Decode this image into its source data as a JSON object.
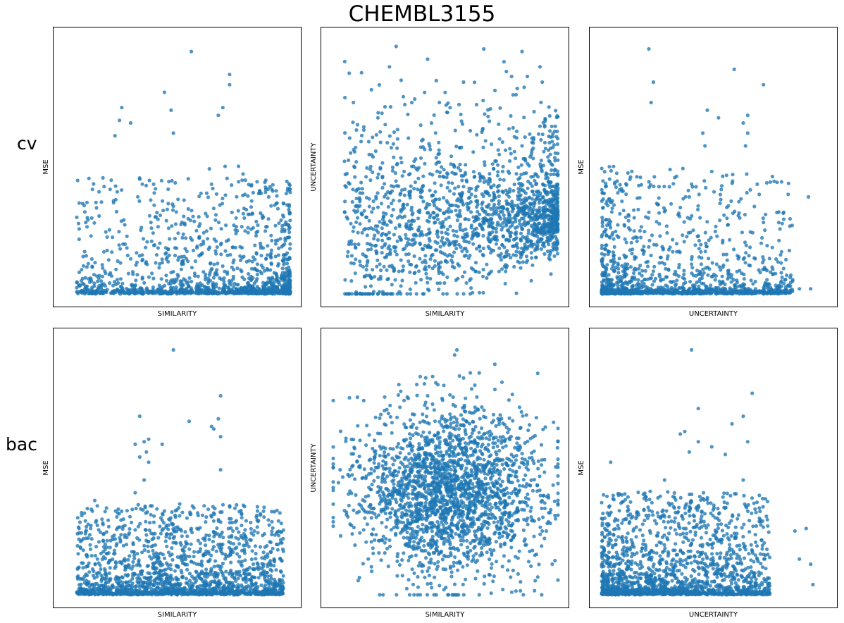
{
  "title": "CHEMBL3155",
  "row_labels": {
    "cv": "cv",
    "bac": "bac"
  },
  "colors": {
    "points": "#1f77b4"
  },
  "chart_data": [
    {
      "type": "scatter",
      "row": "cv",
      "xlabel": "SIMILARITY",
      "ylabel": "MSE",
      "ticks": "hidden",
      "xlim": [
        0,
        1
      ],
      "ylim": [
        0,
        1
      ],
      "seed": 11,
      "n_points": 1400,
      "points": [
        [
          0.56,
          0.95
        ],
        [
          0.73,
          0.86
        ],
        [
          0.73,
          0.82
        ],
        [
          0.44,
          0.79
        ],
        [
          0.47,
          0.72
        ],
        [
          0.7,
          0.73
        ],
        [
          0.25,
          0.73
        ],
        [
          0.24,
          0.68
        ],
        [
          0.29,
          0.67
        ],
        [
          0.48,
          0.63
        ],
        [
          0.22,
          0.62
        ],
        [
          0.68,
          0.7
        ],
        [
          0.64,
          0.49
        ],
        [
          0.71,
          0.5
        ],
        [
          0.46,
          0.44
        ],
        [
          0.33,
          0.45
        ],
        [
          0.65,
          0.43
        ],
        [
          0.91,
          0.42
        ],
        [
          0.16,
          0.36
        ],
        [
          0.77,
          0.5
        ],
        [
          0.79,
          0.47
        ],
        [
          0.09,
          0.28
        ],
        [
          0.38,
          0.28
        ],
        [
          0.23,
          0.4
        ],
        [
          0.1,
          0.29
        ]
      ]
    },
    {
      "type": "scatter",
      "row": "cv",
      "xlabel": "SIMILARITY",
      "ylabel": "UNCERTAINTY",
      "ticks": "hidden",
      "xlim": [
        0,
        1
      ],
      "ylim": [
        0,
        1
      ],
      "seed": 23,
      "n_points": 1700,
      "points": [
        [
          0.28,
          0.97
        ],
        [
          0.67,
          0.96
        ],
        [
          0.84,
          0.95
        ],
        [
          0.76,
          0.91
        ],
        [
          0.42,
          0.92
        ],
        [
          0.25,
          0.89
        ],
        [
          0.92,
          0.89
        ],
        [
          0.85,
          0.81
        ],
        [
          0.58,
          0.83
        ],
        [
          0.09,
          0.75
        ],
        [
          0.52,
          0.73
        ],
        [
          0.2,
          0.71
        ],
        [
          0.93,
          0.83
        ],
        [
          0.8,
          0.78
        ],
        [
          0.17,
          0.8
        ],
        [
          0.35,
          0.75
        ],
        [
          0.05,
          0.52
        ],
        [
          0.11,
          0.24
        ],
        [
          0.84,
          0.58
        ],
        [
          0.36,
          0.52
        ]
      ]
    },
    {
      "type": "scatter",
      "row": "cv",
      "xlabel": "UNCERTAINTY",
      "ylabel": "MSE",
      "ticks": "hidden",
      "xlim": [
        0,
        1
      ],
      "ylim": [
        0,
        1
      ],
      "seed": 37,
      "n_points": 1400,
      "points": [
        [
          0.21,
          0.96
        ],
        [
          0.23,
          0.83
        ],
        [
          0.22,
          0.75
        ],
        [
          0.59,
          0.88
        ],
        [
          0.72,
          0.82
        ],
        [
          0.47,
          0.72
        ],
        [
          0.65,
          0.7
        ],
        [
          0.63,
          0.67
        ],
        [
          0.52,
          0.69
        ],
        [
          0.65,
          0.63
        ],
        [
          0.45,
          0.63
        ],
        [
          0.64,
          0.58
        ],
        [
          0.46,
          0.58
        ],
        [
          0.76,
          0.46
        ],
        [
          0.83,
          0.39
        ],
        [
          0.92,
          0.38
        ],
        [
          0.81,
          0.32
        ],
        [
          0.72,
          0.28
        ],
        [
          0.4,
          0.43
        ],
        [
          0.42,
          0.42
        ],
        [
          0.39,
          0.38
        ],
        [
          0.5,
          0.4
        ],
        [
          0.53,
          0.37
        ],
        [
          0.88,
          0.02
        ],
        [
          0.93,
          0.02
        ],
        [
          0.85,
          0.05
        ]
      ]
    },
    {
      "type": "scatter",
      "row": "bac",
      "xlabel": "SIMILARITY",
      "ylabel": "MSE",
      "ticks": "hidden",
      "xlim": [
        0,
        1
      ],
      "ylim": [
        0,
        1
      ],
      "seed": 51,
      "n_points": 1800,
      "points": [
        [
          0.48,
          0.96
        ],
        [
          0.69,
          0.78
        ],
        [
          0.33,
          0.7
        ],
        [
          0.55,
          0.68
        ],
        [
          0.65,
          0.66
        ],
        [
          0.68,
          0.69
        ],
        [
          0.66,
          0.65
        ],
        [
          0.69,
          0.62
        ],
        [
          0.37,
          0.61
        ],
        [
          0.35,
          0.6
        ],
        [
          0.31,
          0.59
        ],
        [
          0.43,
          0.59
        ],
        [
          0.69,
          0.49
        ],
        [
          0.36,
          0.56
        ],
        [
          0.37,
          0.52
        ],
        [
          0.33,
          0.54
        ],
        [
          0.35,
          0.45
        ],
        [
          0.31,
          0.4
        ],
        [
          0.84,
          0.25
        ],
        [
          0.13,
          0.37
        ],
        [
          0.06,
          0.26
        ],
        [
          0.08,
          0.22
        ]
      ]
    },
    {
      "type": "scatter",
      "row": "bac",
      "xlabel": "SIMILARITY",
      "ylabel": "UNCERTAINTY",
      "ticks": "hidden",
      "xlim": [
        0,
        1
      ],
      "ylim": [
        0,
        1
      ],
      "seed": 67,
      "n_points": 2200,
      "points": [
        [
          0.55,
          0.96
        ],
        [
          0.54,
          0.94
        ],
        [
          0.61,
          0.87
        ],
        [
          0.65,
          0.87
        ],
        [
          0.58,
          0.85
        ],
        [
          0.42,
          0.78
        ],
        [
          0.07,
          0.35
        ],
        [
          0.05,
          0.33
        ],
        [
          0.17,
          0.11
        ],
        [
          0.87,
          0.13
        ],
        [
          0.91,
          0.07
        ],
        [
          0.93,
          0.25
        ]
      ]
    },
    {
      "type": "scatter",
      "row": "bac",
      "xlabel": "UNCERTAINTY",
      "ylabel": "MSE",
      "ticks": "hidden",
      "xlim": [
        0,
        1
      ],
      "ylim": [
        0,
        1
      ],
      "seed": 83,
      "n_points": 1800,
      "points": [
        [
          0.4,
          0.96
        ],
        [
          0.67,
          0.79
        ],
        [
          0.43,
          0.73
        ],
        [
          0.63,
          0.7
        ],
        [
          0.58,
          0.67
        ],
        [
          0.37,
          0.64
        ],
        [
          0.35,
          0.63
        ],
        [
          0.65,
          0.6
        ],
        [
          0.43,
          0.6
        ],
        [
          0.49,
          0.58
        ],
        [
          0.39,
          0.56
        ],
        [
          0.55,
          0.55
        ],
        [
          0.04,
          0.52
        ],
        [
          0.28,
          0.45
        ],
        [
          0.63,
          0.45
        ],
        [
          0.86,
          0.25
        ],
        [
          0.91,
          0.26
        ],
        [
          0.88,
          0.14
        ],
        [
          0.93,
          0.12
        ],
        [
          0.94,
          0.04
        ]
      ]
    }
  ]
}
